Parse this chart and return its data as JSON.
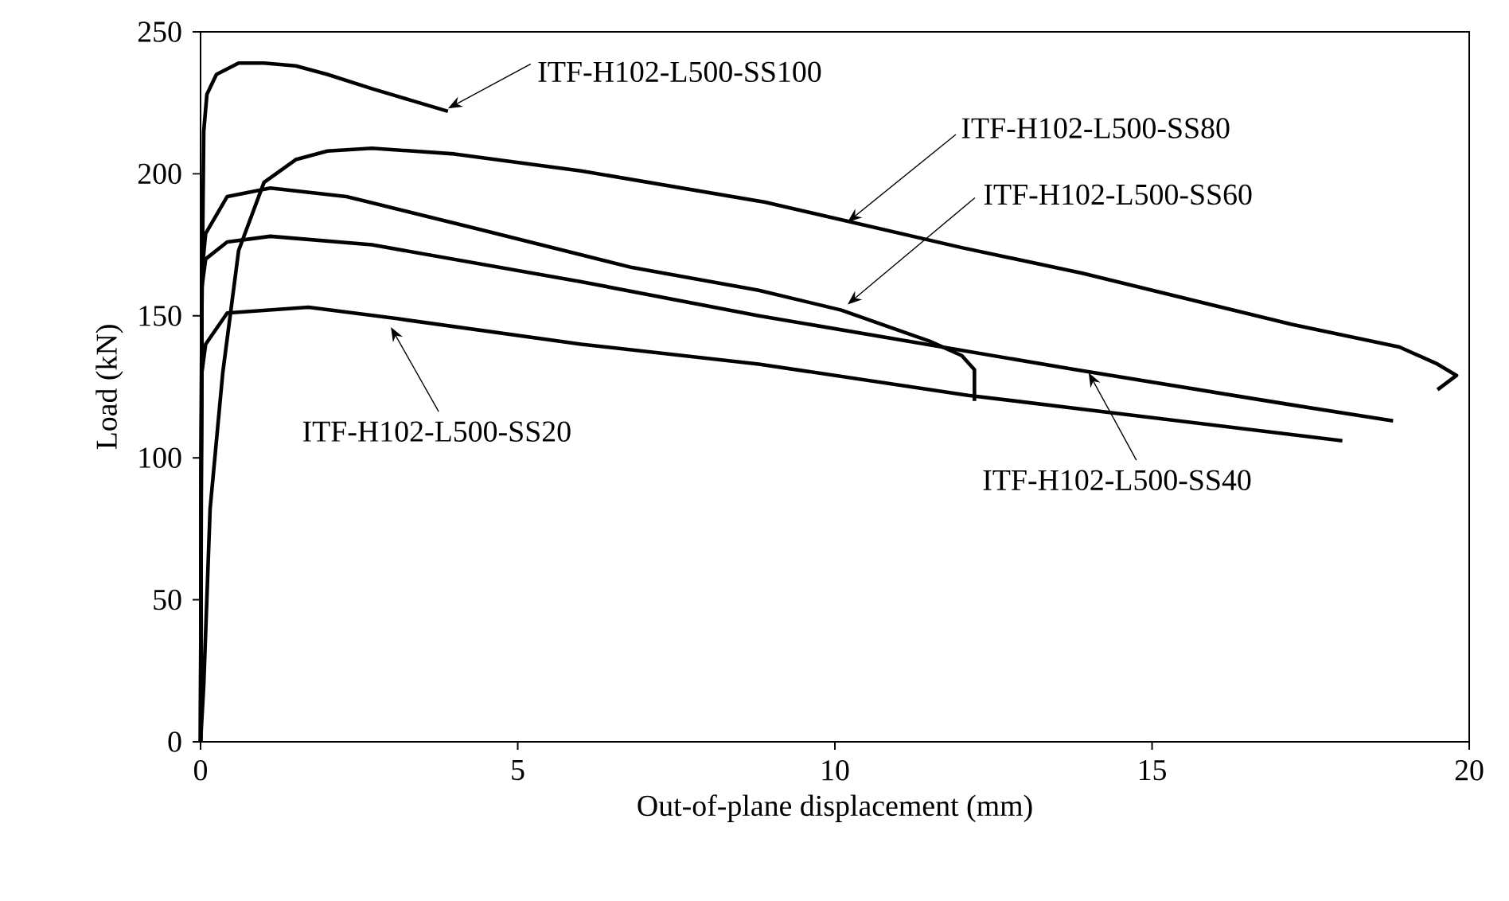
{
  "chart_data": {
    "type": "line",
    "xlabel": "Out-of-plane displacement (mm)",
    "ylabel": "Load (kN)",
    "xlim": [
      0,
      20
    ],
    "ylim": [
      0,
      250
    ],
    "xticks": [
      0,
      5,
      10,
      15,
      20
    ],
    "yticks": [
      0,
      50,
      100,
      150,
      200,
      250
    ],
    "marker": "none",
    "line_style": "solid",
    "series": [
      {
        "color": "#000000",
        "x": [
          0,
          0.02,
          0.05,
          0.1,
          0.25,
          0.6,
          1.0,
          1.5,
          2.0,
          2.7,
          3.3,
          3.9
        ],
        "values": [
          0,
          150,
          215,
          228,
          235,
          239,
          239,
          238,
          235,
          230,
          226,
          222
        ]
      },
      {
        "color": "#000000",
        "x": [
          0,
          0.05,
          0.15,
          0.35,
          0.6,
          1.0,
          1.5,
          2.0,
          2.7,
          4,
          6,
          8.9,
          12,
          13.9,
          17.2,
          18.9,
          19.5,
          19.8,
          19.5
        ],
        "values": [
          0,
          20,
          82,
          130,
          173,
          197,
          205,
          208,
          209,
          207,
          201,
          190,
          174,
          165,
          147,
          139,
          133,
          129,
          124
        ]
      },
      {
        "color": "#000000",
        "x": [
          0,
          0.01,
          0.02,
          0.08,
          0.42,
          1.1,
          2.3,
          4.3,
          6.8,
          8.8,
          10.1,
          11.5,
          12.0,
          12.2,
          12.2
        ],
        "values": [
          0,
          100,
          165,
          179,
          192,
          195,
          192,
          181,
          167,
          159,
          152,
          141,
          136,
          131,
          120
        ]
      },
      {
        "color": "#000000",
        "x": [
          0,
          0.01,
          0.02,
          0.08,
          0.42,
          1.1,
          2.7,
          6.0,
          8.8,
          13.8,
          17.1,
          18.8
        ],
        "values": [
          0,
          100,
          160,
          170,
          176,
          178,
          175,
          162,
          150,
          131,
          119,
          113
        ]
      },
      {
        "color": "#000000",
        "x": [
          0,
          0.01,
          0.02,
          0.08,
          0.42,
          1.7,
          3.1,
          6.0,
          8.8,
          12.1,
          18.0
        ],
        "values": [
          0,
          100,
          130,
          140,
          151,
          153,
          149,
          140,
          133,
          122,
          106
        ]
      }
    ],
    "annotations": [
      {
        "text": "ITF-H102-L500-SS100",
        "x": 3.9,
        "y": 223
      },
      {
        "text": "ITF-H102-L500-SS80",
        "x": 10.2,
        "y": 183
      },
      {
        "text": "ITF-H102-L500-SS60",
        "x": 10.2,
        "y": 154
      },
      {
        "text": "ITF-H102-L500-SS40",
        "x": 14.0,
        "y": 130
      },
      {
        "text": "ITF-H102-L500-SS20",
        "x": 3.0,
        "y": 146
      }
    ]
  }
}
